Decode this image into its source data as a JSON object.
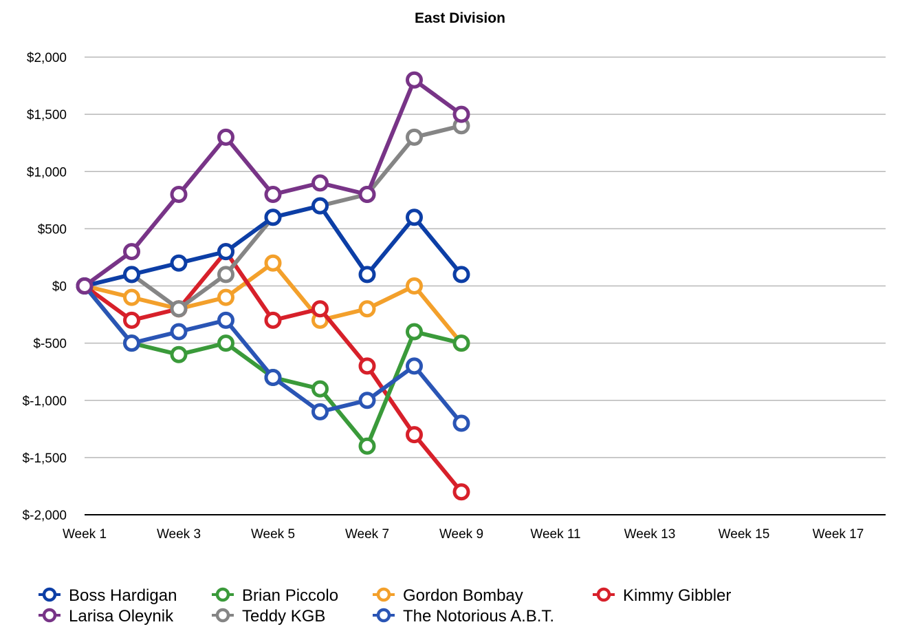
{
  "chart_data": {
    "type": "line",
    "title": "East Division",
    "xlabel": "",
    "ylabel": "",
    "x_categories": [
      "Week 1",
      "Week 2",
      "Week 3",
      "Week 4",
      "Week 5",
      "Week 6",
      "Week 7",
      "Week 8",
      "Week 9",
      "Week 10",
      "Week 11",
      "Week 12",
      "Week 13",
      "Week 14",
      "Week 15",
      "Week 16",
      "Week 17"
    ],
    "x_tick_labels": [
      "Week 1",
      "Week 3",
      "Week 5",
      "Week 7",
      "Week 9",
      "Week 11",
      "Week 13",
      "Week 15",
      "Week 17"
    ],
    "ylim": [
      -2000,
      2000
    ],
    "y_tick_values": [
      2000,
      1500,
      1000,
      500,
      0,
      -500,
      -1000,
      -1500,
      -2000
    ],
    "y_tick_labels": [
      "$2,000",
      "$1,500",
      "$1,000",
      "$500",
      "$0",
      "$-500",
      "$-1,000",
      "$-1,500",
      "$-2,000"
    ],
    "grid": true,
    "legend_position": "bottom",
    "series": [
      {
        "name": "Boss Hardigan",
        "color": "#0c3ea6",
        "values": [
          0,
          100,
          200,
          300,
          600,
          700,
          100,
          600,
          100
        ]
      },
      {
        "name": "Brian Piccolo",
        "color": "#3a9a3a",
        "values": [
          0,
          -500,
          -600,
          -500,
          -800,
          -900,
          -1400,
          -400,
          -500
        ]
      },
      {
        "name": "Gordon Bombay",
        "color": "#f3a02b",
        "values": [
          0,
          -100,
          -200,
          -100,
          200,
          -300,
          -200,
          0,
          -500
        ]
      },
      {
        "name": "Kimmy Gibbler",
        "color": "#d7202a",
        "values": [
          0,
          -300,
          -200,
          300,
          -300,
          -200,
          -700,
          -1300,
          -1800
        ]
      },
      {
        "name": "Larisa Oleynik",
        "color": "#783487",
        "values": [
          0,
          300,
          800,
          1300,
          800,
          900,
          800,
          1800,
          1500
        ]
      },
      {
        "name": "Teddy KGB",
        "color": "#858585",
        "values": [
          0,
          100,
          -200,
          100,
          600,
          700,
          800,
          1300,
          1400
        ]
      },
      {
        "name": "The Notorious A.B.T.",
        "color": "#2a55b5",
        "values": [
          0,
          -500,
          -400,
          -300,
          -800,
          -1100,
          -1000,
          -700,
          -1200
        ]
      }
    ]
  }
}
